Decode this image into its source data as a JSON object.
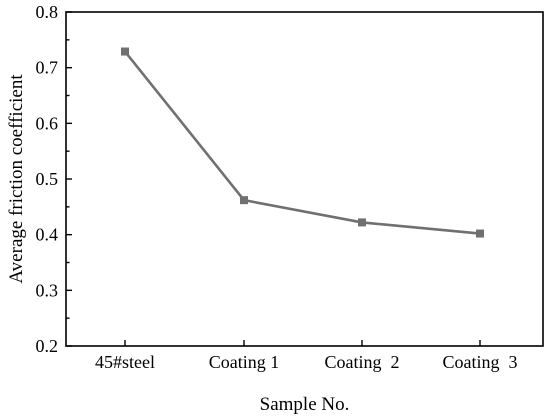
{
  "chart_data": {
    "type": "line",
    "title": "",
    "xlabel": "Sample No.",
    "ylabel": "Average friction coefficient",
    "categories": [
      "45#steel",
      "Coating 1",
      "Coating  2",
      "Coating  3"
    ],
    "series": [
      {
        "values": [
          0.729,
          0.462,
          0.422,
          0.402
        ],
        "color": "#707070",
        "marker": "square"
      }
    ],
    "ylim": [
      0.2,
      0.8
    ],
    "yticks": [
      0.2,
      0.3,
      0.4,
      0.5,
      0.6,
      0.7,
      0.8
    ],
    "ytick_labels": [
      "0.2",
      "0.3",
      "0.4",
      "0.5",
      "0.6",
      "0.7",
      "0.8"
    ],
    "grid": false,
    "legend": "none"
  }
}
